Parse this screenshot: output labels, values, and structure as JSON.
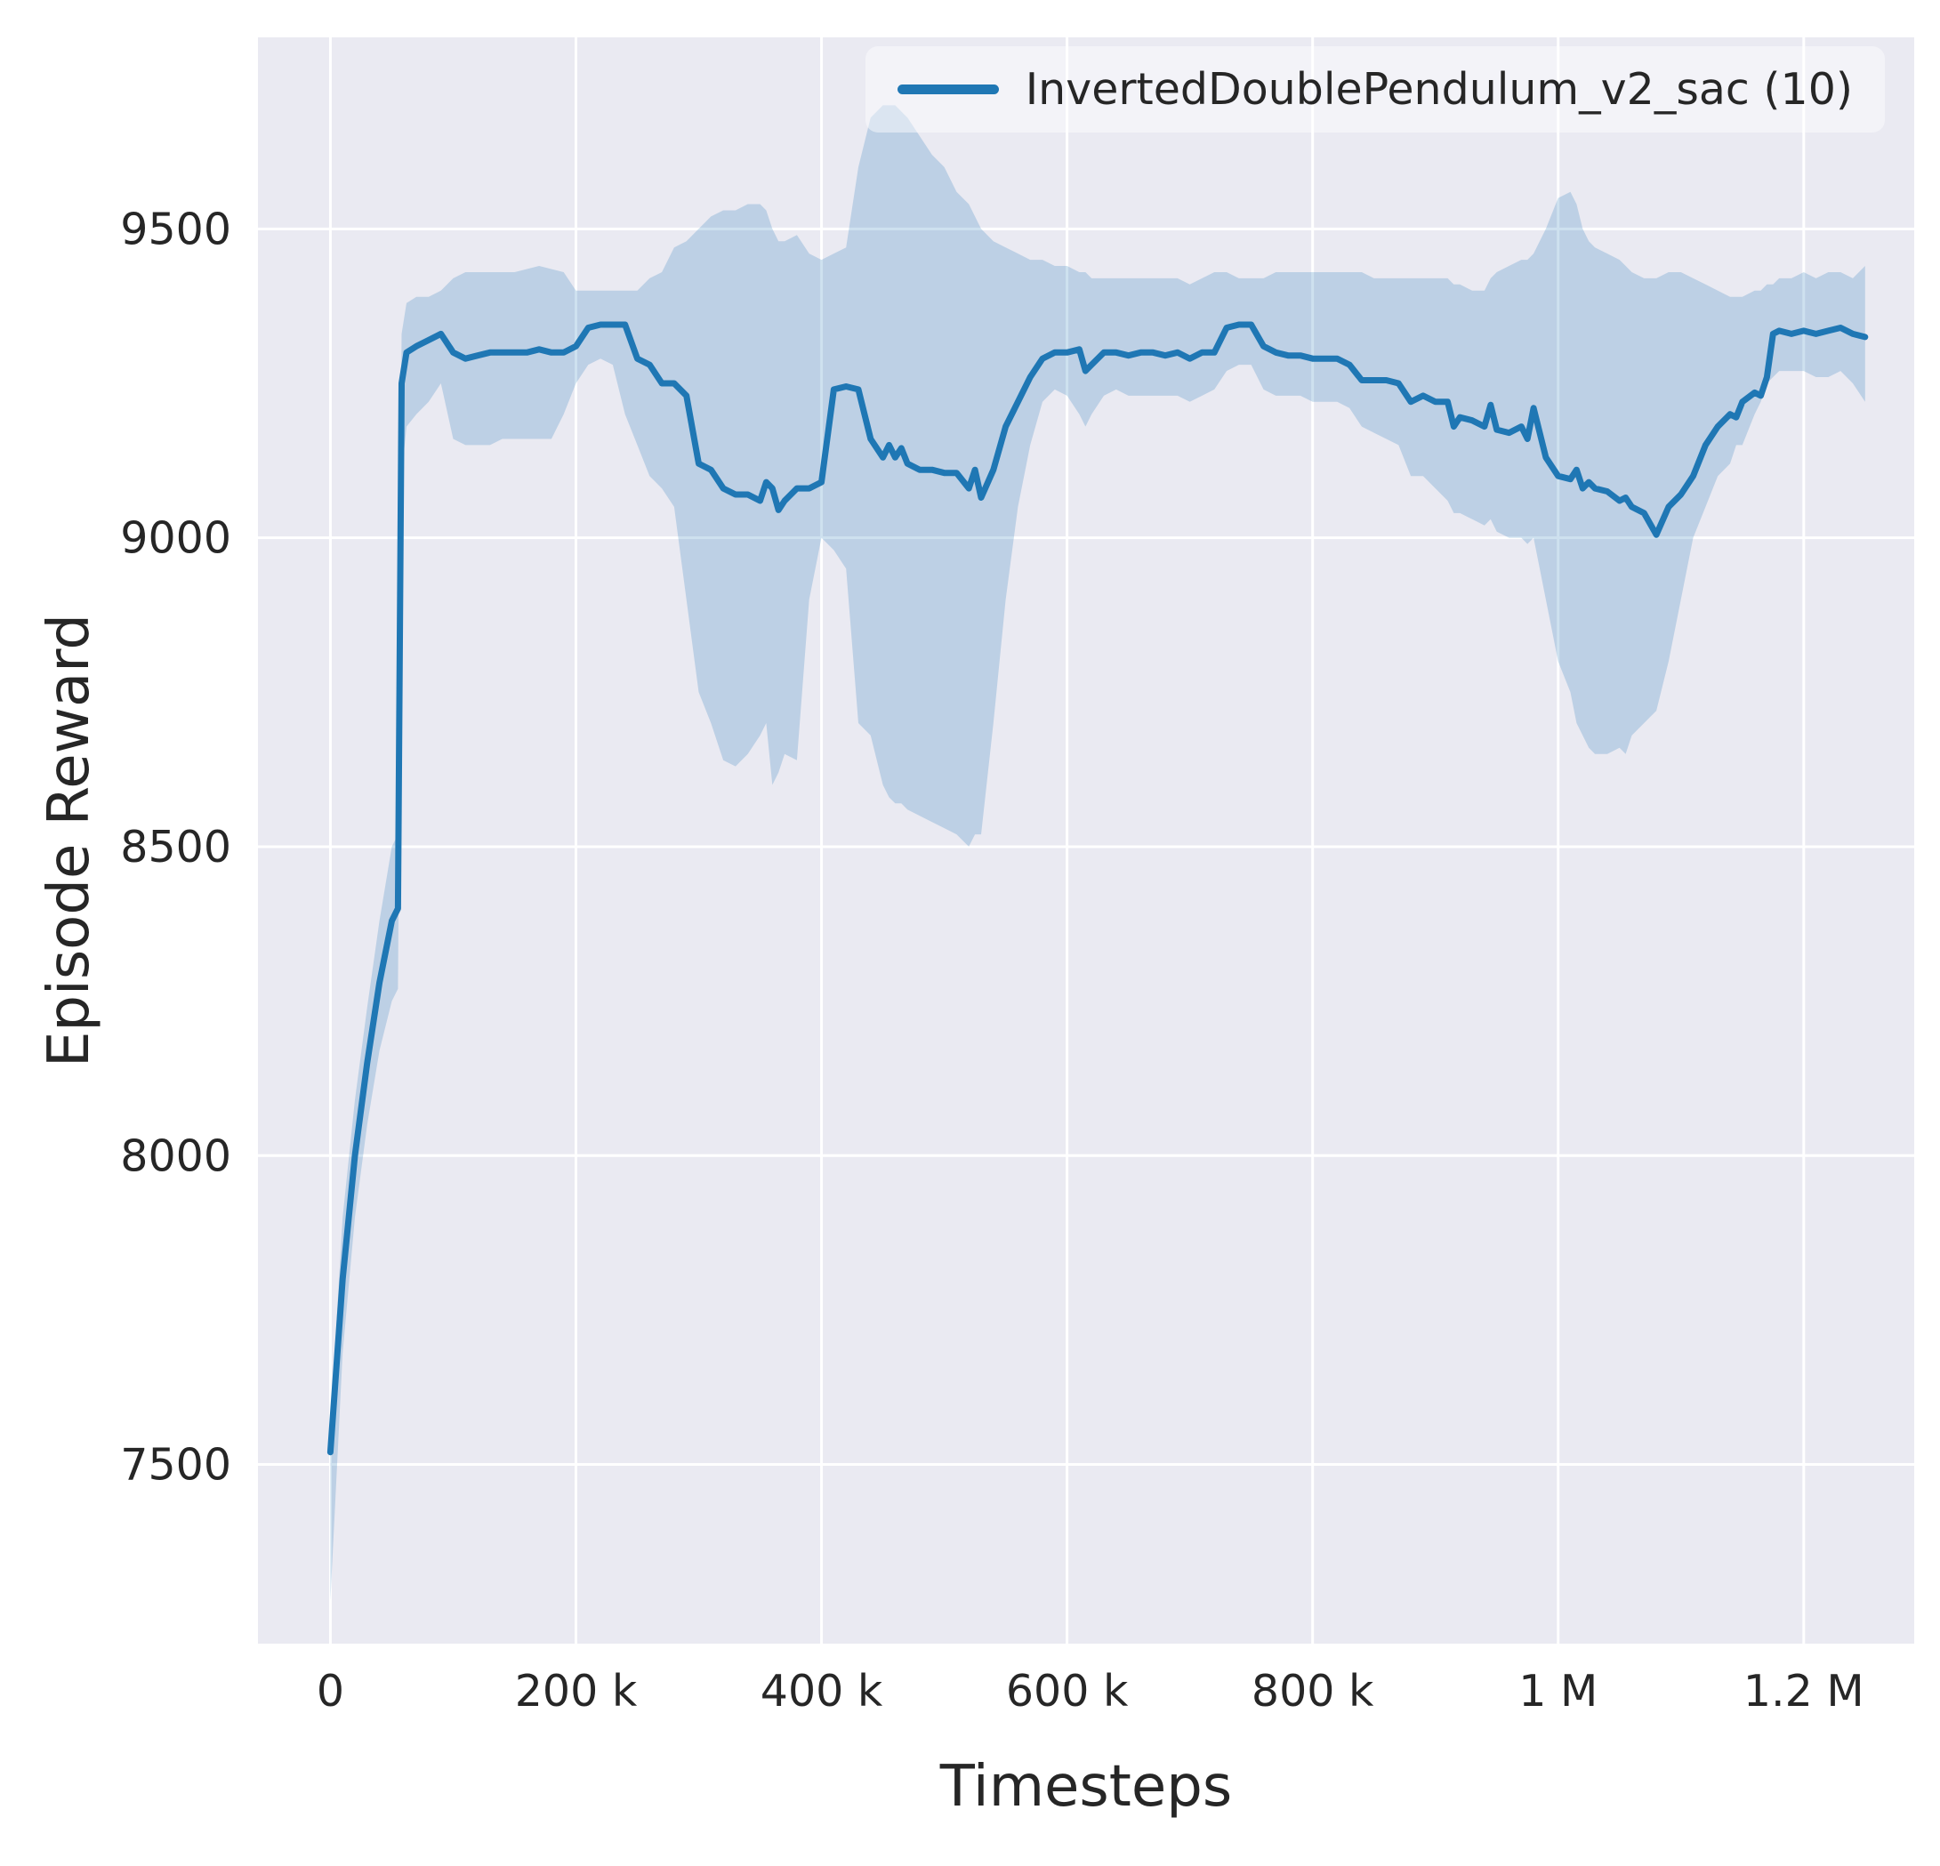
{
  "figure": {
    "background": "#ffffff",
    "plot_background": "#eaeaf2",
    "grid_color": "#ffffff",
    "tick_color": "#262626",
    "label_color": "#262626"
  },
  "chart_data": {
    "type": "line",
    "title": "",
    "xlabel": "Timesteps",
    "ylabel": "Episode Reward",
    "grid": true,
    "legend_position": "upper right",
    "xlim": [
      -59000,
      1290000
    ],
    "ylim": [
      7210,
      9810
    ],
    "x_scale": 1000,
    "xticks": [
      {
        "value": 0,
        "label": "0"
      },
      {
        "value": 200000,
        "label": "200 k"
      },
      {
        "value": 400000,
        "label": "400 k"
      },
      {
        "value": 600000,
        "label": "600 k"
      },
      {
        "value": 800000,
        "label": "800 k"
      },
      {
        "value": 1000000,
        "label": "1 M"
      },
      {
        "value": 1200000,
        "label": "1.2 M"
      }
    ],
    "yticks": [
      {
        "value": 7500,
        "label": "7500"
      },
      {
        "value": 8000,
        "label": "8000"
      },
      {
        "value": 8500,
        "label": "8500"
      },
      {
        "value": 9000,
        "label": "9000"
      },
      {
        "value": 9500,
        "label": "9500"
      }
    ],
    "series": [
      {
        "name": "InvertedDoublePendulum_v2_sac (10)",
        "color": "#1f77b4",
        "line_width": 7,
        "band_opacity": 0.22,
        "points_format": [
          "x_thousand_steps",
          "mean",
          "band_low",
          "band_high"
        ],
        "points": [
          [
            0,
            7520,
            7280,
            7560
          ],
          [
            10,
            7800,
            7680,
            7900
          ],
          [
            20,
            8000,
            7900,
            8090
          ],
          [
            30,
            8150,
            8050,
            8240
          ],
          [
            40,
            8280,
            8170,
            8380
          ],
          [
            50,
            8380,
            8250,
            8500
          ],
          [
            55,
            8400,
            8270,
            8520
          ],
          [
            58,
            9250,
            9100,
            9330
          ],
          [
            62,
            9300,
            9180,
            9380
          ],
          [
            70,
            9310,
            9200,
            9390
          ],
          [
            80,
            9320,
            9220,
            9390
          ],
          [
            90,
            9330,
            9250,
            9400
          ],
          [
            100,
            9300,
            9160,
            9420
          ],
          [
            110,
            9290,
            9150,
            9430
          ],
          [
            120,
            9295,
            9150,
            9430
          ],
          [
            130,
            9300,
            9150,
            9430
          ],
          [
            140,
            9300,
            9160,
            9430
          ],
          [
            150,
            9300,
            9160,
            9430
          ],
          [
            160,
            9300,
            9160,
            9435
          ],
          [
            170,
            9305,
            9160,
            9440
          ],
          [
            180,
            9300,
            9160,
            9435
          ],
          [
            190,
            9300,
            9200,
            9430
          ],
          [
            200,
            9310,
            9250,
            9400
          ],
          [
            210,
            9340,
            9280,
            9400
          ],
          [
            220,
            9345,
            9290,
            9400
          ],
          [
            230,
            9345,
            9280,
            9400
          ],
          [
            240,
            9345,
            9200,
            9400
          ],
          [
            250,
            9290,
            9150,
            9400
          ],
          [
            260,
            9280,
            9100,
            9420
          ],
          [
            270,
            9250,
            9080,
            9430
          ],
          [
            280,
            9250,
            9050,
            9470
          ],
          [
            290,
            9230,
            8900,
            9480
          ],
          [
            300,
            9120,
            8750,
            9500
          ],
          [
            310,
            9110,
            8700,
            9520
          ],
          [
            320,
            9080,
            8640,
            9530
          ],
          [
            330,
            9070,
            8630,
            9530
          ],
          [
            340,
            9070,
            8650,
            9540
          ],
          [
            350,
            9060,
            8680,
            9540
          ],
          [
            355,
            9090,
            8700,
            9530
          ],
          [
            360,
            9080,
            8600,
            9500
          ],
          [
            365,
            9045,
            8620,
            9480
          ],
          [
            370,
            9060,
            8650,
            9480
          ],
          [
            380,
            9080,
            8640,
            9490
          ],
          [
            390,
            9080,
            8900,
            9460
          ],
          [
            400,
            9090,
            9000,
            9450
          ],
          [
            410,
            9240,
            8980,
            9460
          ],
          [
            420,
            9245,
            8950,
            9470
          ],
          [
            430,
            9240,
            8700,
            9600
          ],
          [
            440,
            9160,
            8680,
            9680
          ],
          [
            450,
            9130,
            8600,
            9700
          ],
          [
            455,
            9150,
            8580,
            9700
          ],
          [
            460,
            9130,
            8570,
            9700
          ],
          [
            465,
            9145,
            8570,
            9690
          ],
          [
            470,
            9120,
            8560,
            9680
          ],
          [
            480,
            9110,
            8550,
            9650
          ],
          [
            490,
            9110,
            8540,
            9620
          ],
          [
            500,
            9105,
            8530,
            9600
          ],
          [
            510,
            9105,
            8520,
            9560
          ],
          [
            520,
            9080,
            8500,
            9540
          ],
          [
            525,
            9110,
            8520,
            9520
          ],
          [
            530,
            9065,
            8520,
            9500
          ],
          [
            540,
            9110,
            8700,
            9480
          ],
          [
            550,
            9180,
            8900,
            9470
          ],
          [
            560,
            9220,
            9050,
            9460
          ],
          [
            570,
            9260,
            9150,
            9450
          ],
          [
            580,
            9290,
            9220,
            9450
          ],
          [
            590,
            9300,
            9240,
            9440
          ],
          [
            600,
            9300,
            9230,
            9440
          ],
          [
            610,
            9305,
            9200,
            9430
          ],
          [
            615,
            9270,
            9180,
            9430
          ],
          [
            620,
            9280,
            9200,
            9420
          ],
          [
            630,
            9300,
            9230,
            9420
          ],
          [
            640,
            9300,
            9240,
            9420
          ],
          [
            650,
            9295,
            9230,
            9420
          ],
          [
            660,
            9300,
            9230,
            9420
          ],
          [
            670,
            9300,
            9230,
            9420
          ],
          [
            680,
            9295,
            9230,
            9420
          ],
          [
            690,
            9300,
            9230,
            9420
          ],
          [
            700,
            9290,
            9220,
            9410
          ],
          [
            710,
            9300,
            9230,
            9420
          ],
          [
            720,
            9300,
            9240,
            9430
          ],
          [
            730,
            9340,
            9270,
            9430
          ],
          [
            740,
            9345,
            9280,
            9420
          ],
          [
            750,
            9345,
            9280,
            9420
          ],
          [
            760,
            9310,
            9240,
            9420
          ],
          [
            770,
            9300,
            9230,
            9430
          ],
          [
            780,
            9295,
            9230,
            9430
          ],
          [
            790,
            9295,
            9230,
            9430
          ],
          [
            800,
            9290,
            9220,
            9430
          ],
          [
            810,
            9290,
            9220,
            9430
          ],
          [
            820,
            9290,
            9220,
            9430
          ],
          [
            830,
            9280,
            9210,
            9430
          ],
          [
            840,
            9255,
            9180,
            9430
          ],
          [
            850,
            9255,
            9170,
            9420
          ],
          [
            860,
            9255,
            9160,
            9420
          ],
          [
            870,
            9250,
            9150,
            9420
          ],
          [
            880,
            9220,
            9100,
            9420
          ],
          [
            890,
            9230,
            9100,
            9420
          ],
          [
            900,
            9220,
            9080,
            9420
          ],
          [
            910,
            9220,
            9060,
            9420
          ],
          [
            915,
            9180,
            9040,
            9410
          ],
          [
            920,
            9195,
            9040,
            9410
          ],
          [
            930,
            9190,
            9030,
            9400
          ],
          [
            940,
            9180,
            9020,
            9400
          ],
          [
            945,
            9215,
            9030,
            9420
          ],
          [
            950,
            9175,
            9010,
            9430
          ],
          [
            960,
            9170,
            9000,
            9440
          ],
          [
            970,
            9180,
            9000,
            9450
          ],
          [
            975,
            9160,
            8990,
            9450
          ],
          [
            980,
            9210,
            9000,
            9460
          ],
          [
            990,
            9130,
            8900,
            9500
          ],
          [
            1000,
            9100,
            8800,
            9550
          ],
          [
            1010,
            9095,
            8750,
            9560
          ],
          [
            1015,
            9110,
            8700,
            9540
          ],
          [
            1020,
            9080,
            8680,
            9500
          ],
          [
            1025,
            9090,
            8660,
            9480
          ],
          [
            1030,
            9080,
            8650,
            9470
          ],
          [
            1040,
            9075,
            8650,
            9460
          ],
          [
            1050,
            9060,
            8660,
            9450
          ],
          [
            1055,
            9065,
            8650,
            9440
          ],
          [
            1060,
            9050,
            8680,
            9430
          ],
          [
            1070,
            9040,
            8700,
            9420
          ],
          [
            1080,
            9005,
            8720,
            9420
          ],
          [
            1090,
            9050,
            8800,
            9430
          ],
          [
            1100,
            9070,
            8900,
            9430
          ],
          [
            1110,
            9100,
            9000,
            9420
          ],
          [
            1120,
            9150,
            9050,
            9410
          ],
          [
            1130,
            9180,
            9100,
            9400
          ],
          [
            1140,
            9200,
            9120,
            9390
          ],
          [
            1145,
            9195,
            9150,
            9390
          ],
          [
            1150,
            9220,
            9150,
            9390
          ],
          [
            1160,
            9235,
            9200,
            9400
          ],
          [
            1165,
            9230,
            9220,
            9400
          ],
          [
            1170,
            9260,
            9250,
            9410
          ],
          [
            1175,
            9330,
            9260,
            9410
          ],
          [
            1180,
            9335,
            9270,
            9420
          ],
          [
            1190,
            9330,
            9270,
            9420
          ],
          [
            1200,
            9335,
            9270,
            9430
          ],
          [
            1210,
            9330,
            9260,
            9420
          ],
          [
            1220,
            9335,
            9260,
            9430
          ],
          [
            1230,
            9340,
            9270,
            9430
          ],
          [
            1240,
            9330,
            9250,
            9420
          ],
          [
            1250,
            9325,
            9220,
            9440
          ]
        ]
      }
    ]
  }
}
